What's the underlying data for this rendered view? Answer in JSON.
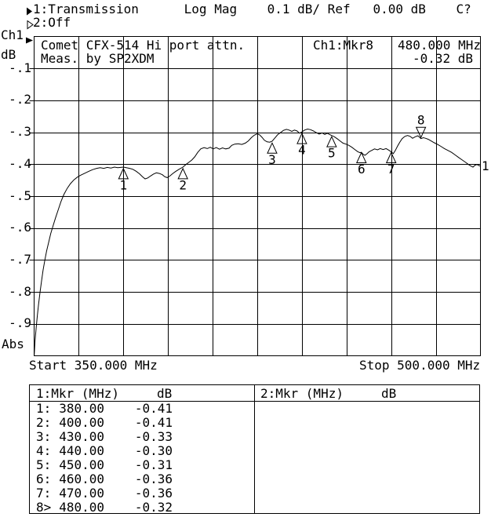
{
  "header": {
    "line1_arrow": "filled-right-triangle",
    "line1": "1:Transmission      Log Mag    0.1 dB/ Ref   0.00 dB    C?",
    "line2_arrow": "open-right-triangle",
    "line2": "2:Off"
  },
  "y_axis": {
    "channel": "Ch1",
    "unit": "dB",
    "tick_labels": [
      "-.1",
      "-.2",
      "-.3",
      "-.4",
      "-.5",
      "-.6",
      "-.7",
      "-.8",
      "-.9"
    ],
    "bottom_label": "Abs"
  },
  "x_axis": {
    "start_label": "Start 350.000 MHz",
    "stop_label": "Stop 500.000 MHz"
  },
  "annotations": {
    "title_line1": "Comet CFX-514 Hi port attn.",
    "title_line2": "Meas. by SP2XDM",
    "readout_channel": "Ch1:Mkr8",
    "readout_freq": "480.000 MHz",
    "readout_level": "-0.32 dB",
    "trace_end_label": "1"
  },
  "chart_data": {
    "type": "line",
    "title": "Comet CFX-514 Hi port attn.",
    "subtitle": "Meas. by SP2XDM",
    "xlabel": "MHz",
    "ylabel": "dB",
    "xlim": [
      350,
      500
    ],
    "ylim": [
      -1.0,
      0
    ],
    "x_divisions": 10,
    "y_divisions": 10,
    "scale_per_division_db": 0.1,
    "reference_level_db": 0.0,
    "grid": true,
    "markers": [
      {
        "label": "1",
        "mhz": 380.0,
        "db": -0.41,
        "active": false
      },
      {
        "label": "2",
        "mhz": 400.0,
        "db": -0.41,
        "active": false
      },
      {
        "label": "3",
        "mhz": 430.0,
        "db": -0.33,
        "active": false
      },
      {
        "label": "4",
        "mhz": 440.0,
        "db": -0.3,
        "active": false
      },
      {
        "label": "5",
        "mhz": 450.0,
        "db": -0.31,
        "active": false
      },
      {
        "label": "6",
        "mhz": 460.0,
        "db": -0.36,
        "active": false
      },
      {
        "label": "7",
        "mhz": 470.0,
        "db": -0.36,
        "active": false
      },
      {
        "label": "8",
        "mhz": 480.0,
        "db": -0.32,
        "active": true
      }
    ],
    "trace": [
      [
        350.0,
        -1.005
      ],
      [
        350.3,
        -0.955
      ],
      [
        350.7,
        -0.91
      ],
      [
        351.1,
        -0.872
      ],
      [
        351.5,
        -0.838
      ],
      [
        352.0,
        -0.8
      ],
      [
        352.5,
        -0.765
      ],
      [
        353.0,
        -0.732
      ],
      [
        353.6,
        -0.7
      ],
      [
        354.2,
        -0.672
      ],
      [
        354.9,
        -0.644
      ],
      [
        355.6,
        -0.617
      ],
      [
        356.4,
        -0.592
      ],
      [
        357.2,
        -0.568
      ],
      [
        358.1,
        -0.543
      ],
      [
        359.0,
        -0.518
      ],
      [
        360.0,
        -0.495
      ],
      [
        361.1,
        -0.476
      ],
      [
        362.2,
        -0.461
      ],
      [
        363.4,
        -0.449
      ],
      [
        364.6,
        -0.44
      ],
      [
        365.8,
        -0.434
      ],
      [
        367.1,
        -0.428
      ],
      [
        368.4,
        -0.422
      ],
      [
        369.7,
        -0.417
      ],
      [
        371.0,
        -0.413
      ],
      [
        372.2,
        -0.411
      ],
      [
        373.4,
        -0.413
      ],
      [
        374.6,
        -0.41
      ],
      [
        375.8,
        -0.412
      ],
      [
        377.0,
        -0.409
      ],
      [
        378.1,
        -0.411
      ],
      [
        379.1,
        -0.41
      ],
      [
        380.0,
        -0.409
      ],
      [
        381.0,
        -0.411
      ],
      [
        382.1,
        -0.413
      ],
      [
        383.2,
        -0.416
      ],
      [
        384.3,
        -0.422
      ],
      [
        385.4,
        -0.43
      ],
      [
        386.4,
        -0.439
      ],
      [
        387.3,
        -0.446
      ],
      [
        388.2,
        -0.443
      ],
      [
        389.1,
        -0.437
      ],
      [
        390.1,
        -0.431
      ],
      [
        391.1,
        -0.427
      ],
      [
        392.1,
        -0.429
      ],
      [
        393.1,
        -0.433
      ],
      [
        393.9,
        -0.439
      ],
      [
        394.7,
        -0.442
      ],
      [
        395.6,
        -0.437
      ],
      [
        396.5,
        -0.43
      ],
      [
        397.5,
        -0.423
      ],
      [
        398.7,
        -0.416
      ],
      [
        400.0,
        -0.409
      ],
      [
        401.0,
        -0.401
      ],
      [
        402.0,
        -0.394
      ],
      [
        403.0,
        -0.387
      ],
      [
        404.0,
        -0.377
      ],
      [
        405.0,
        -0.363
      ],
      [
        406.0,
        -0.352
      ],
      [
        407.1,
        -0.348
      ],
      [
        408.2,
        -0.351
      ],
      [
        409.2,
        -0.347
      ],
      [
        410.2,
        -0.352
      ],
      [
        411.2,
        -0.348
      ],
      [
        412.3,
        -0.353
      ],
      [
        413.3,
        -0.349
      ],
      [
        414.4,
        -0.352
      ],
      [
        415.5,
        -0.35
      ],
      [
        416.4,
        -0.341
      ],
      [
        417.4,
        -0.337
      ],
      [
        418.6,
        -0.336
      ],
      [
        419.8,
        -0.338
      ],
      [
        421.0,
        -0.334
      ],
      [
        422.0,
        -0.327
      ],
      [
        423.0,
        -0.317
      ],
      [
        424.0,
        -0.309
      ],
      [
        425.0,
        -0.305
      ],
      [
        425.8,
        -0.308
      ],
      [
        426.6,
        -0.316
      ],
      [
        427.4,
        -0.325
      ],
      [
        428.3,
        -0.33
      ],
      [
        429.2,
        -0.331
      ],
      [
        430.0,
        -0.328
      ],
      [
        430.9,
        -0.318
      ],
      [
        431.8,
        -0.308
      ],
      [
        432.8,
        -0.301
      ],
      [
        433.8,
        -0.294
      ],
      [
        434.8,
        -0.291
      ],
      [
        435.7,
        -0.293
      ],
      [
        436.6,
        -0.297
      ],
      [
        437.5,
        -0.293
      ],
      [
        438.4,
        -0.296
      ],
      [
        439.2,
        -0.303
      ],
      [
        440.0,
        -0.299
      ],
      [
        440.9,
        -0.293
      ],
      [
        441.9,
        -0.29
      ],
      [
        442.9,
        -0.292
      ],
      [
        443.9,
        -0.296
      ],
      [
        444.8,
        -0.301
      ],
      [
        445.8,
        -0.306
      ],
      [
        446.8,
        -0.302
      ],
      [
        447.7,
        -0.307
      ],
      [
        448.5,
        -0.303
      ],
      [
        449.3,
        -0.307
      ],
      [
        450.0,
        -0.31
      ],
      [
        450.9,
        -0.314
      ],
      [
        451.8,
        -0.32
      ],
      [
        452.8,
        -0.327
      ],
      [
        453.8,
        -0.334
      ],
      [
        454.8,
        -0.337
      ],
      [
        455.8,
        -0.341
      ],
      [
        456.8,
        -0.347
      ],
      [
        457.8,
        -0.354
      ],
      [
        458.8,
        -0.361
      ],
      [
        459.5,
        -0.364
      ],
      [
        460.0,
        -0.363
      ],
      [
        460.6,
        -0.369
      ],
      [
        461.2,
        -0.372
      ],
      [
        461.9,
        -0.367
      ],
      [
        462.6,
        -0.361
      ],
      [
        463.4,
        -0.357
      ],
      [
        464.4,
        -0.352
      ],
      [
        465.4,
        -0.355
      ],
      [
        466.3,
        -0.351
      ],
      [
        467.3,
        -0.354
      ],
      [
        468.3,
        -0.351
      ],
      [
        469.2,
        -0.356
      ],
      [
        470.0,
        -0.361
      ],
      [
        470.7,
        -0.367
      ],
      [
        471.4,
        -0.357
      ],
      [
        472.1,
        -0.344
      ],
      [
        472.9,
        -0.331
      ],
      [
        473.7,
        -0.32
      ],
      [
        474.6,
        -0.313
      ],
      [
        475.5,
        -0.31
      ],
      [
        476.4,
        -0.313
      ],
      [
        477.2,
        -0.319
      ],
      [
        478.1,
        -0.314
      ],
      [
        479.0,
        -0.311
      ],
      [
        479.6,
        -0.316
      ],
      [
        480.0,
        -0.32
      ],
      [
        480.8,
        -0.317
      ],
      [
        481.6,
        -0.319
      ],
      [
        482.5,
        -0.322
      ],
      [
        483.4,
        -0.327
      ],
      [
        484.5,
        -0.333
      ],
      [
        485.6,
        -0.338
      ],
      [
        486.7,
        -0.344
      ],
      [
        487.9,
        -0.351
      ],
      [
        489.1,
        -0.357
      ],
      [
        490.3,
        -0.363
      ],
      [
        491.5,
        -0.371
      ],
      [
        492.7,
        -0.379
      ],
      [
        493.9,
        -0.387
      ],
      [
        495.0,
        -0.394
      ],
      [
        496.0,
        -0.401
      ],
      [
        496.8,
        -0.406
      ],
      [
        497.5,
        -0.409
      ],
      [
        498.2,
        -0.403
      ],
      [
        498.9,
        -0.401
      ],
      [
        499.4,
        -0.404
      ],
      [
        500.0,
        -0.406
      ]
    ]
  },
  "marker_table": {
    "left": {
      "title": "1:Mkr (MHz)",
      "unit": "dB",
      "rows": [
        {
          "idx": "1:",
          "freq": "380.00",
          "db": "-0.41"
        },
        {
          "idx": "2:",
          "freq": "400.00",
          "db": "-0.41"
        },
        {
          "idx": "3:",
          "freq": "430.00",
          "db": "-0.33"
        },
        {
          "idx": "4:",
          "freq": "440.00",
          "db": "-0.30"
        },
        {
          "idx": "5:",
          "freq": "450.00",
          "db": "-0.31"
        },
        {
          "idx": "6:",
          "freq": "460.00",
          "db": "-0.36"
        },
        {
          "idx": "7:",
          "freq": "470.00",
          "db": "-0.36"
        },
        {
          "idx": "8>",
          "freq": "480.00",
          "db": "-0.32"
        }
      ]
    },
    "right": {
      "title": "2:Mkr (MHz)",
      "unit": "dB",
      "rows": []
    }
  },
  "colors": {
    "foreground": "#000000",
    "background": "#ffffff"
  }
}
